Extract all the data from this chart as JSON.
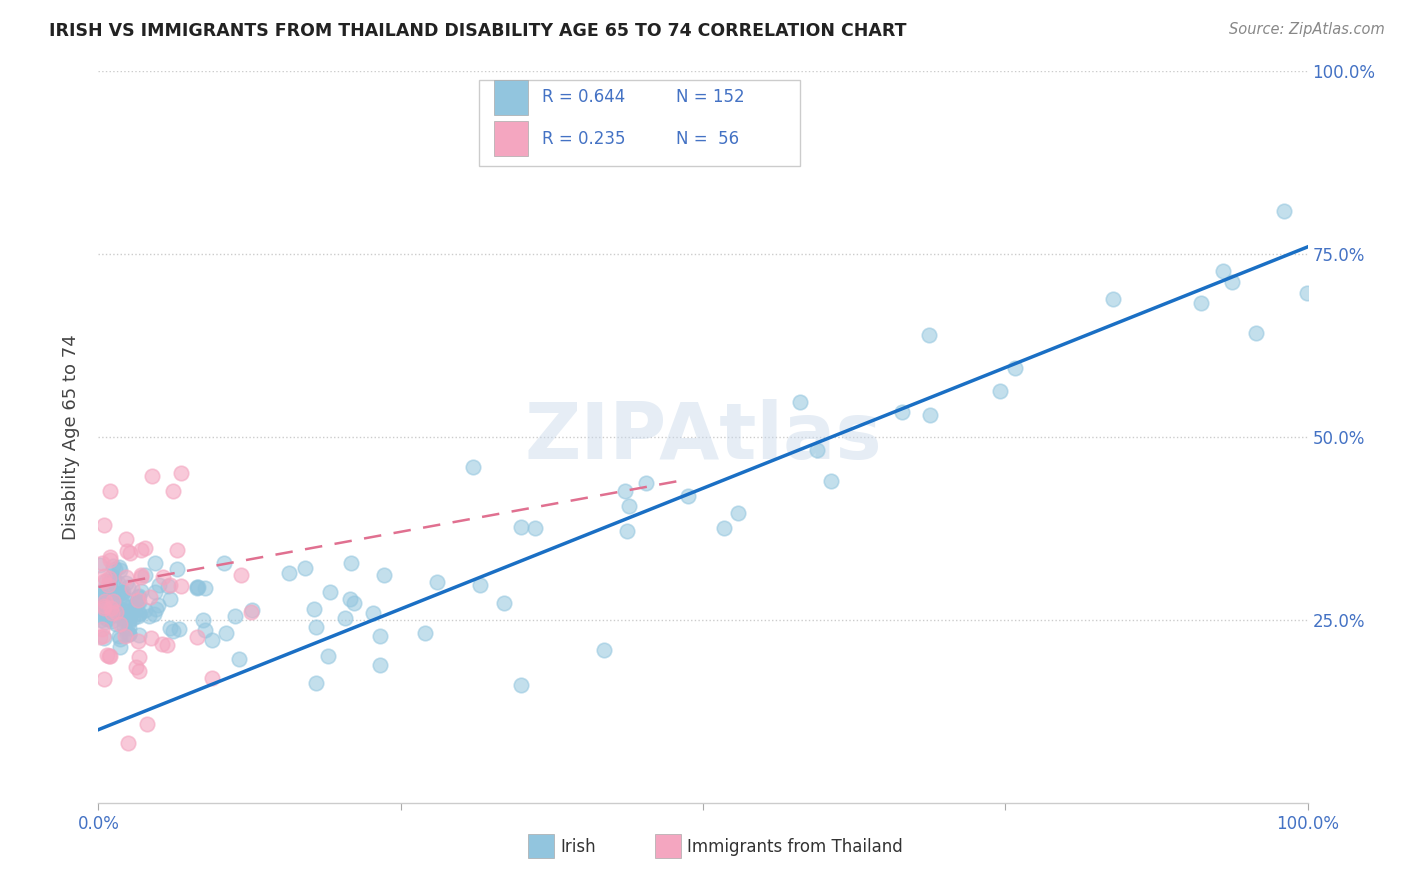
{
  "title": "IRISH VS IMMIGRANTS FROM THAILAND DISABILITY AGE 65 TO 74 CORRELATION CHART",
  "source": "Source: ZipAtlas.com",
  "ylabel": "Disability Age 65 to 74",
  "watermark": "ZIPAtlas",
  "blue_color": "#92c5de",
  "pink_color": "#f4a6c0",
  "line_blue": "#1a6fc4",
  "line_pink": "#e07090",
  "irish_line": [
    0.0,
    1.0,
    0.1,
    0.76
  ],
  "thai_line": [
    0.0,
    0.48,
    0.295,
    0.44
  ],
  "xlim": [
    0.0,
    1.0
  ],
  "ylim": [
    0.0,
    1.0
  ],
  "yticks": [
    0.25,
    0.5,
    0.75,
    1.0
  ],
  "ytick_labels": [
    "25.0%",
    "50.0%",
    "75.0%",
    "100.0%"
  ],
  "xtick_labels": [
    "0.0%",
    "100.0%"
  ],
  "legend_items": [
    {
      "color": "#92c5de",
      "r": "R = 0.644",
      "n": "N = 152"
    },
    {
      "color": "#f4a6c0",
      "r": "R = 0.235",
      "n": "N =  56"
    }
  ],
  "bottom_legend": [
    {
      "color": "#92c5de",
      "label": "Irish"
    },
    {
      "color": "#f4a6c0",
      "label": "Immigrants from Thailand"
    }
  ]
}
